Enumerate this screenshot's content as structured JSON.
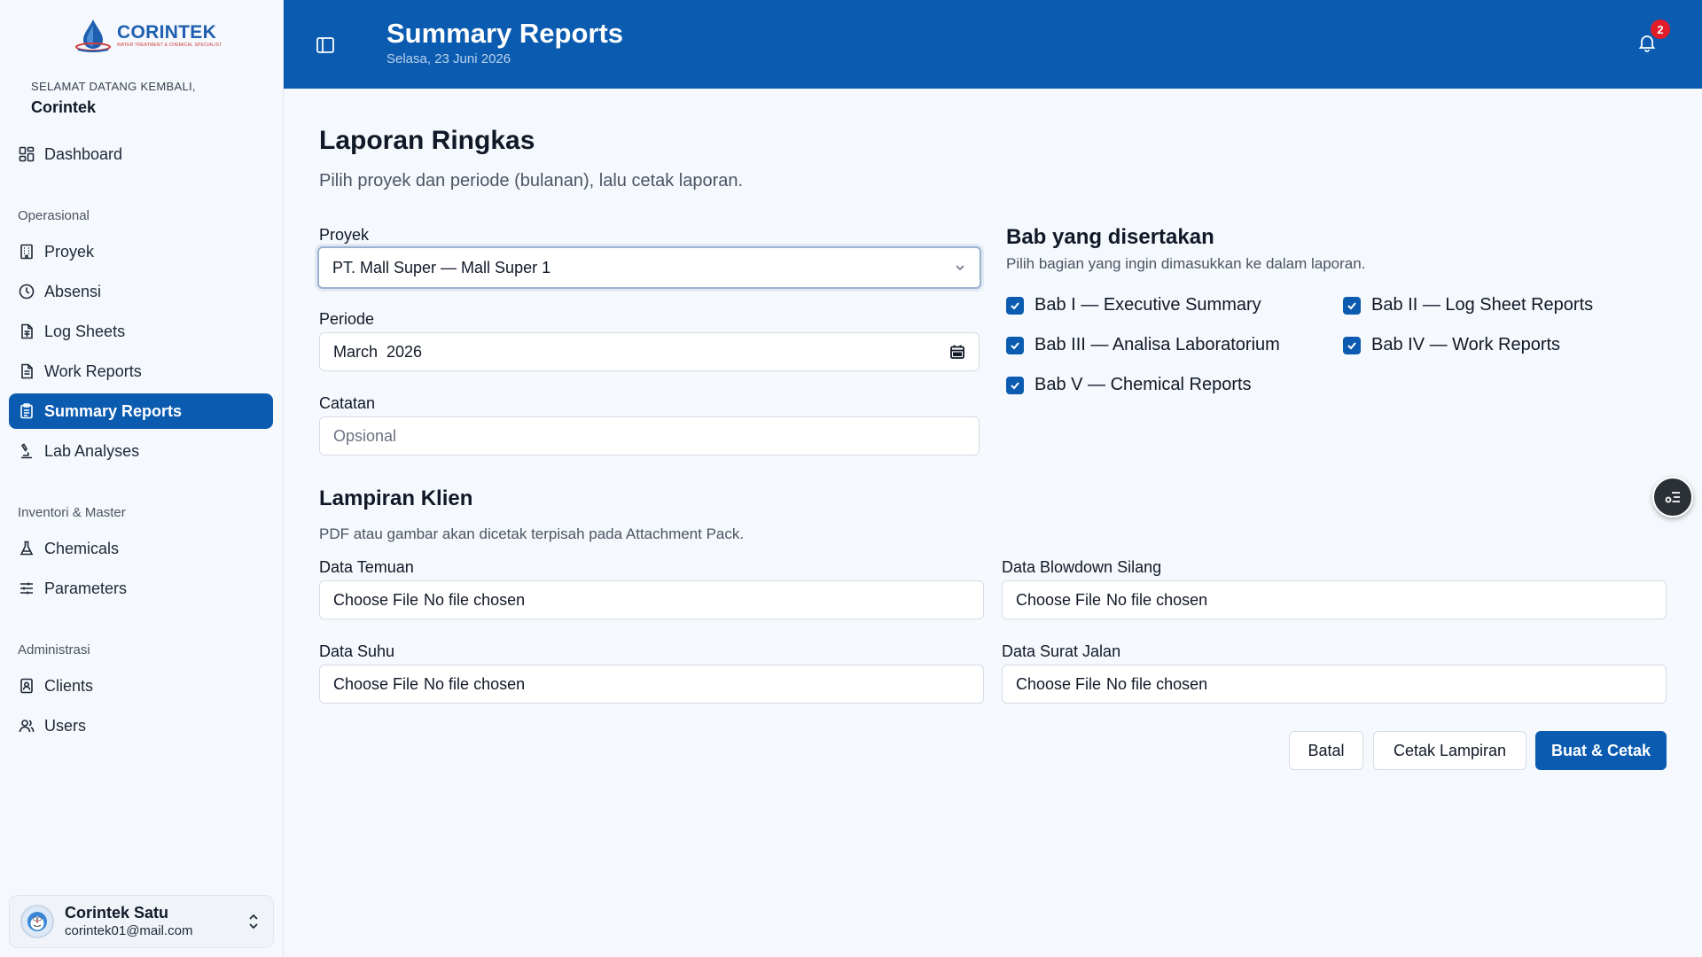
{
  "brand": {
    "name": "CORINTEK",
    "tagline": "WATER TREATMENT & CHEMICAL SPECIALIST"
  },
  "welcome": {
    "greeting": "SELAMAT DATANG KEMBALI,",
    "name": "Corintek"
  },
  "nav": {
    "dashboard": "Dashboard",
    "section_ops": "Operasional",
    "proyek": "Proyek",
    "absensi": "Absensi",
    "log_sheets": "Log Sheets",
    "work_reports": "Work Reports",
    "summary_reports": "Summary Reports",
    "lab_analyses": "Lab Analyses",
    "section_inv": "Inventori & Master",
    "chemicals": "Chemicals",
    "parameters": "Parameters",
    "section_admin": "Administrasi",
    "clients": "Clients",
    "users": "Users"
  },
  "user": {
    "name": "Corintek Satu",
    "email": "corintek01@mail.com"
  },
  "header": {
    "title": "Summary Reports",
    "date": "Selasa, 23 Juni 2026",
    "notifications": "2"
  },
  "page": {
    "title": "Laporan Ringkas",
    "subtitle": "Pilih proyek dan periode (bulanan), lalu cetak laporan."
  },
  "form": {
    "proyek_label": "Proyek",
    "proyek_value": "PT. Mall Super — Mall Super 1",
    "periode_label": "Periode",
    "periode_value": "March  2026",
    "catatan_label": "Catatan",
    "catatan_placeholder": "Opsional"
  },
  "chapters": {
    "title": "Bab yang disertakan",
    "subtitle": "Pilih bagian yang ingin dimasukkan ke dalam laporan.",
    "items": [
      {
        "label": "Bab I — Executive Summary",
        "checked": true
      },
      {
        "label": "Bab II — Log Sheet Reports",
        "checked": true
      },
      {
        "label": "Bab III — Analisa Laboratorium",
        "checked": true
      },
      {
        "label": "Bab IV — Work Reports",
        "checked": true
      },
      {
        "label": "Bab V — Chemical Reports",
        "checked": true
      }
    ]
  },
  "attachments": {
    "title": "Lampiran Klien",
    "subtitle": "PDF atau gambar akan dicetak terpisah pada Attachment Pack.",
    "choose_label": "Choose File",
    "no_file": "No file chosen",
    "fields": [
      {
        "label": "Data Temuan"
      },
      {
        "label": "Data Blowdown Silang"
      },
      {
        "label": "Data Suhu"
      },
      {
        "label": "Data Surat Jalan"
      }
    ]
  },
  "actions": {
    "cancel": "Batal",
    "print_attachment": "Cetak Lampiran",
    "create_print": "Buat & Cetak"
  },
  "colors": {
    "primary": "#0b5cb0",
    "badge": "#e11d2a",
    "background": "#f5f8fc"
  },
  "icons": {
    "dashboard": "dashboard-icon",
    "proyek": "building-icon",
    "absensi": "clock-icon",
    "log_sheets": "file-sheet-icon",
    "work_reports": "file-text-icon",
    "summary_reports": "clipboard-icon",
    "lab_analyses": "microscope-icon",
    "chemicals": "flask-icon",
    "parameters": "sliders-icon",
    "clients": "contact-book-icon",
    "users": "users-icon",
    "notification": "bell-icon"
  }
}
